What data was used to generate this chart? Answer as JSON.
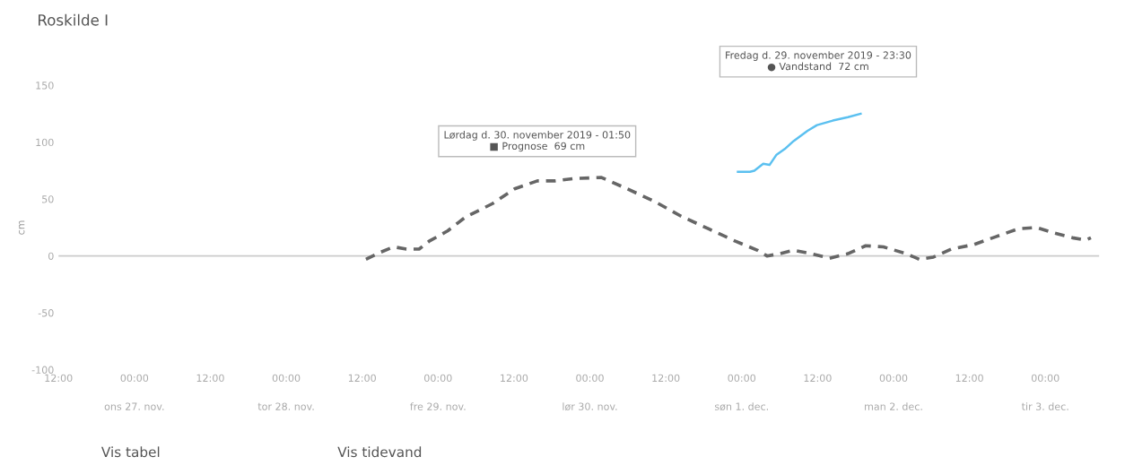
{
  "chart_data": {
    "type": "line",
    "title": "Roskilde I",
    "ylabel": "cm",
    "xlim": [
      "2019-11-26T12:00",
      "2019-12-03T08:30"
    ],
    "ylim": [
      -100,
      150
    ],
    "yticks": [
      -100,
      -50,
      0,
      50,
      100,
      150
    ],
    "xticks": [
      {
        "value": "2019-11-26T12:00",
        "label": "12:00"
      },
      {
        "value": "2019-11-27T00:00",
        "label": "00:00"
      },
      {
        "value": "2019-11-27T12:00",
        "label": "12:00"
      },
      {
        "value": "2019-11-28T00:00",
        "label": "00:00"
      },
      {
        "value": "2019-11-28T12:00",
        "label": "12:00"
      },
      {
        "value": "2019-11-29T00:00",
        "label": "00:00"
      },
      {
        "value": "2019-11-29T12:00",
        "label": "12:00"
      },
      {
        "value": "2019-11-30T00:00",
        "label": "00:00"
      },
      {
        "value": "2019-11-30T12:00",
        "label": "12:00"
      },
      {
        "value": "2019-12-01T00:00",
        "label": "00:00"
      },
      {
        "value": "2019-12-01T12:00",
        "label": "12:00"
      },
      {
        "value": "2019-12-02T00:00",
        "label": "00:00"
      },
      {
        "value": "2019-12-02T12:00",
        "label": "12:00"
      },
      {
        "value": "2019-12-03T00:00",
        "label": "00:00"
      }
    ],
    "x2lim": [
      "2019-11-26T12:00",
      "2019-12-03T08:30"
    ],
    "x2ticks": [
      {
        "value": "2019-11-27T00:00",
        "label": "ons 27. nov."
      },
      {
        "value": "2019-11-28T00:00",
        "label": "tor 28. nov."
      },
      {
        "value": "2019-11-29T00:00",
        "label": "fre 29. nov."
      },
      {
        "value": "2019-11-30T00:00",
        "label": "lør 30. nov."
      },
      {
        "value": "2019-12-01T00:00",
        "label": "søn 1. dec."
      },
      {
        "value": "2019-12-02T00:00",
        "label": "man 2. dec."
      },
      {
        "value": "2019-12-03T00:00",
        "label": "tir 3. dec."
      }
    ],
    "grid": false,
    "legend": false,
    "ref_lines": [
      {
        "axis": "y",
        "value": 0,
        "color": "#cccccc"
      }
    ],
    "series": [
      {
        "color": "#666666",
        "line_style": "dashed",
        "x": [
          "2019-11-28T12:36",
          "2019-11-28T14:48",
          "2019-11-28T17:00",
          "2019-11-28T19:00",
          "2019-11-28T21:00",
          "2019-11-28T22:36",
          "2019-11-29T01:30",
          "2019-11-29T04:18",
          "2019-11-29T08:36",
          "2019-11-29T12:06",
          "2019-11-29T15:42",
          "2019-11-29T18:30",
          "2019-11-29T21:24",
          "2019-11-30T01:50",
          "2019-11-30T05:54",
          "2019-11-30T10:12",
          "2019-11-30T14:24",
          "2019-11-30T18:42",
          "2019-11-30T23:00",
          "2019-12-01T02:30",
          "2019-12-01T04:00",
          "2019-12-01T06:00",
          "2019-12-01T08:12",
          "2019-12-01T11:00",
          "2019-12-01T13:54",
          "2019-12-01T16:48",
          "2019-12-01T19:36",
          "2019-12-01T22:24",
          "2019-12-02T02:00",
          "2019-12-02T04:06",
          "2019-12-02T06:18",
          "2019-12-02T09:06",
          "2019-12-02T12:42",
          "2019-12-02T16:12",
          "2019-12-02T19:48",
          "2019-12-02T22:36",
          "2019-12-03T01:30",
          "2019-12-03T04:18",
          "2019-12-03T06:24",
          "2019-12-03T07:12"
        ],
        "values": [
          -3,
          3,
          8,
          6,
          6,
          13,
          22,
          34,
          46,
          59,
          66,
          66,
          68,
          69,
          59,
          48,
          35,
          24,
          13,
          5,
          0,
          2,
          5,
          2,
          -2,
          2,
          9,
          8,
          2,
          -3,
          -1,
          6,
          10,
          17,
          24,
          25,
          20,
          16,
          14,
          16
        ]
      },
      {
        "color": "#5bc0f0",
        "line_style": "solid",
        "x": [
          "2019-11-30T23:24",
          "2019-12-01T00:06",
          "2019-12-01T01:18",
          "2019-12-01T02:00",
          "2019-12-01T03:24",
          "2019-12-01T04:24",
          "2019-12-01T05:30",
          "2019-12-01T06:48",
          "2019-12-01T08:12",
          "2019-12-01T10:24",
          "2019-12-01T11:54",
          "2019-12-01T14:24",
          "2019-12-01T16:48",
          "2019-12-01T18:48"
        ],
        "values": [
          74,
          74,
          74,
          75,
          81,
          80,
          89,
          94,
          101,
          110,
          115,
          119,
          122,
          125
        ]
      }
    ],
    "annotations": [
      "Lørdag d. 30. november 2019 - 01:50\n■ Prognose  69 cm",
      "Fredag d. 29. november 2019 - 23:30\n● Vandstand  72 cm",
      "Vis tabel",
      "Vis tidevand"
    ]
  }
}
